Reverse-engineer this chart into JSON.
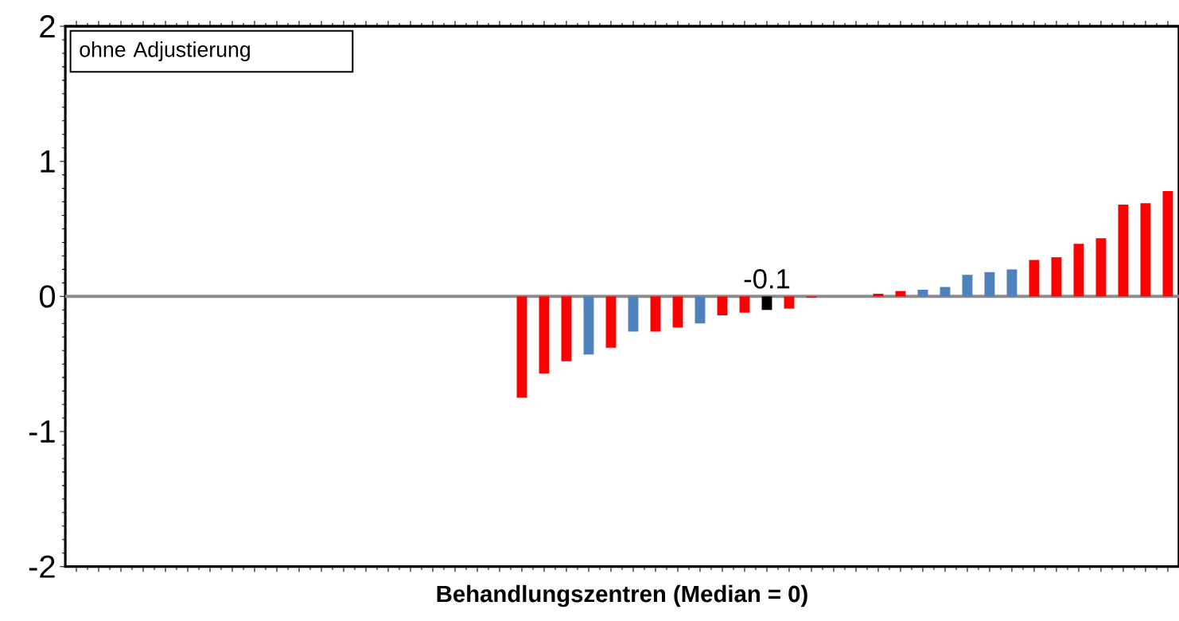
{
  "chart_data": {
    "type": "bar",
    "xlabel": "Behandlungszentren (Median = 0)",
    "categories": [
      null,
      null,
      null,
      null,
      null,
      null,
      null,
      null,
      null,
      null,
      null,
      null,
      null,
      null,
      null,
      null,
      null,
      null,
      null,
      null,
      null,
      null,
      null,
      null,
      null,
      null,
      null,
      null,
      null,
      null,
      null,
      null,
      null,
      null,
      null,
      null,
      null,
      null,
      null,
      null,
      null,
      null,
      null,
      null,
      null,
      null,
      null,
      null,
      null,
      null
    ],
    "values": [
      null,
      null,
      null,
      null,
      null,
      null,
      null,
      null,
      null,
      null,
      null,
      null,
      null,
      null,
      null,
      null,
      null,
      null,
      null,
      null,
      -0.75,
      -0.57,
      -0.48,
      -0.43,
      -0.38,
      -0.26,
      -0.26,
      -0.23,
      -0.2,
      -0.14,
      -0.12,
      -0.1,
      -0.09,
      -0.01,
      0,
      0,
      0.02,
      0.04,
      0.05,
      0.07,
      0.16,
      0.18,
      0.2,
      0.27,
      0.29,
      0.39,
      0.43,
      0.68,
      0.69,
      0.78
    ],
    "colors": [
      null,
      null,
      null,
      null,
      null,
      null,
      null,
      null,
      null,
      null,
      null,
      null,
      null,
      null,
      null,
      null,
      null,
      null,
      null,
      null,
      "#ff0000",
      "#ff0000",
      "#ff0000",
      "#4f81bd",
      "#ff0000",
      "#4f81bd",
      "#ff0000",
      "#ff0000",
      "#4f81bd",
      "#ff0000",
      "#ff0000",
      "#000000",
      "#ff0000",
      "#ff0000",
      "#ff0000",
      "#ff0000",
      "#ff0000",
      "#ff0000",
      "#4f81bd",
      "#4f81bd",
      "#4f81bd",
      "#4f81bd",
      "#4f81bd",
      "#ff0000",
      "#ff0000",
      "#ff0000",
      "#ff0000",
      "#ff0000",
      "#ff0000",
      "#ff0000"
    ],
    "value_labels": [
      null,
      null,
      null,
      null,
      null,
      null,
      null,
      null,
      null,
      null,
      null,
      null,
      null,
      null,
      null,
      null,
      null,
      null,
      null,
      null,
      null,
      null,
      null,
      null,
      null,
      null,
      null,
      null,
      null,
      null,
      null,
      "-0.1",
      null,
      null,
      null,
      null,
      null,
      null,
      null,
      null,
      null,
      null,
      null,
      null,
      null,
      null,
      null,
      null,
      null,
      null
    ],
    "ylim": [
      -2,
      2
    ],
    "yticks": [
      -2,
      -1,
      0,
      1,
      2
    ],
    "ref_lines": [
      {
        "axis": "y",
        "value": 0,
        "color": "#8c8c8c"
      }
    ],
    "annotations": [
      "ohne Adjustierung"
    ],
    "tick_labels": "y",
    "grid": false
  }
}
